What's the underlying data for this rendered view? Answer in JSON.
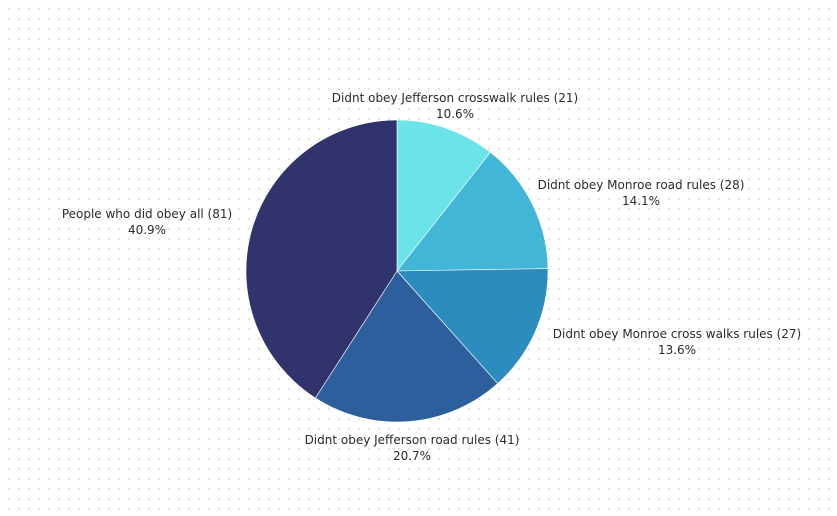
{
  "chart_data": {
    "type": "pie",
    "slices": [
      {
        "label": "Didnt obey Jefferson crosswalk rules (21)",
        "value": 21,
        "percent": "10.6%",
        "color": "#6ae4e8"
      },
      {
        "label": "Didnt obey Monroe road rules (28)",
        "value": 28,
        "percent": "14.1%",
        "color": "#42b6d7"
      },
      {
        "label": "Didnt obey Monroe cross walks rules (27)",
        "value": 27,
        "percent": "13.6%",
        "color": "#2b8dbd"
      },
      {
        "label": "Didnt obey Jefferson road rules (41)",
        "value": 41,
        "percent": "20.7%",
        "color": "#2c5f9b"
      },
      {
        "label": "People who did obey all (81)",
        "value": 81,
        "percent": "40.9%",
        "color": "#31346c"
      }
    ],
    "start_angle": "12 o'clock",
    "direction": "clockwise",
    "legend": "none"
  }
}
